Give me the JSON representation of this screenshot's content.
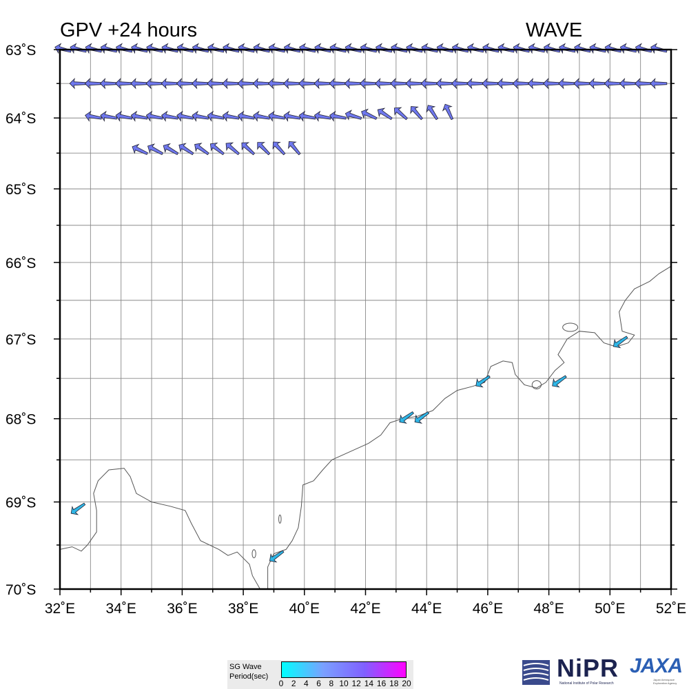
{
  "title_left": "GPV +24 hours",
  "title_right": "WAVE",
  "map": {
    "lon_range": [
      32,
      52
    ],
    "lat_range": [
      -70,
      -63
    ],
    "lon_labels": [
      "32˚E",
      "34˚E",
      "36˚E",
      "38˚E",
      "40˚E",
      "42˚E",
      "44˚E",
      "46˚E",
      "48˚E",
      "50˚E",
      "52˚E"
    ],
    "lat_labels": [
      "63˚S",
      "64˚S",
      "65˚S",
      "66˚S",
      "67˚S",
      "68˚S",
      "69˚S",
      "70˚S"
    ],
    "gridlines": "every 1° longitude, every 0.5° latitude",
    "coastline_color": "#555555",
    "grid_color": "#888888"
  },
  "wave_arrows": {
    "color_scale": "SG Wave Period (sec)",
    "open_ocean_color": "#6f78ee",
    "coastal_color": "#2fb6e6",
    "rows": [
      {
        "lat": -63.0,
        "lon_start": 32.0,
        "lon_end": 51.5,
        "direction": "toward SW (flat)"
      },
      {
        "lat": -63.5,
        "lon_start": 32.5,
        "lon_end": 51.5,
        "direction": "toward W"
      },
      {
        "lat": -64.0,
        "lon_start": 33.0,
        "lon_end": 44.5,
        "direction": "toward W, turning S near east end"
      },
      {
        "lat": -64.5,
        "lon_start": 34.5,
        "lon_end": 39.5,
        "direction": "toward SW"
      }
    ],
    "coastal": [
      {
        "lon": 32.5,
        "lat": -69.0
      },
      {
        "lon": 39.0,
        "lat": -69.55
      },
      {
        "lon": 43.25,
        "lat": -67.9
      },
      {
        "lon": 43.75,
        "lat": -67.9
      },
      {
        "lon": 45.75,
        "lat": -67.45
      },
      {
        "lon": 48.25,
        "lat": -67.45
      },
      {
        "lon": 50.25,
        "lat": -66.95
      }
    ]
  },
  "legend": {
    "title": "SG Wave\nPeriod(sec)",
    "ticks": [
      "0",
      "2",
      "4",
      "6",
      "8",
      "10",
      "12",
      "14",
      "16",
      "18",
      "20"
    ],
    "colors": [
      "#00ffff",
      "#7aa0ff",
      "#8060ff",
      "#ff00ff"
    ]
  },
  "logos": {
    "nipr": "NiPR",
    "nipr_sub": "National Institute of Polar Research",
    "jaxa": "JAXA",
    "jaxa_sub": "Japan Aerospace Exploration Agency"
  }
}
